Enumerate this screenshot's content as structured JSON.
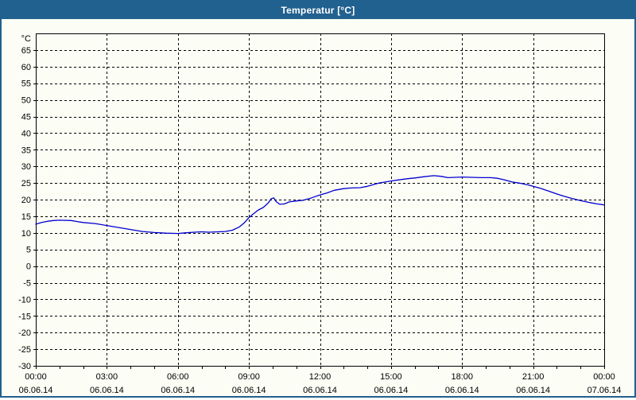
{
  "window": {
    "title": "Temperatur [°C]",
    "title_bar_color": "#21618F",
    "border_color": "#21618F",
    "background": "#FCFDF5"
  },
  "chart_data": {
    "type": "line",
    "title": "Temperatur [°C]",
    "xlabel": "",
    "ylabel": "°C",
    "y_unit_label": "°C",
    "ylim": [
      -30,
      70
    ],
    "y_tick_labels": [
      65,
      60,
      55,
      50,
      45,
      40,
      35,
      30,
      25,
      20,
      15,
      10,
      5,
      0,
      -5,
      -10,
      -15,
      -20,
      -25,
      -30
    ],
    "x_range_hours": [
      0,
      24
    ],
    "x_major_ticks": [
      {
        "hour": 0,
        "time": "00:00",
        "date": "06.06.14"
      },
      {
        "hour": 3,
        "time": "03:00",
        "date": "06.06.14"
      },
      {
        "hour": 6,
        "time": "06:00",
        "date": "06.06.14"
      },
      {
        "hour": 9,
        "time": "09:00",
        "date": "06.06.14"
      },
      {
        "hour": 12,
        "time": "12:00",
        "date": "06.06.14"
      },
      {
        "hour": 15,
        "time": "15:00",
        "date": "06.06.14"
      },
      {
        "hour": 18,
        "time": "18:00",
        "date": "06.06.14"
      },
      {
        "hour": 21,
        "time": "21:00",
        "date": "06.06.14"
      },
      {
        "hour": 24,
        "time": "00:00",
        "date": "07.06.14"
      }
    ],
    "x_minor_tick_step_hours": 1,
    "grid": "dashed",
    "legend": "none",
    "series": [
      {
        "name": "Temperatur",
        "color": "#0000D0",
        "points": [
          [
            0.0,
            12.6
          ],
          [
            0.25,
            13.1
          ],
          [
            0.5,
            13.5
          ],
          [
            0.75,
            13.7
          ],
          [
            1.0,
            13.8
          ],
          [
            1.5,
            13.7
          ],
          [
            1.75,
            13.4
          ],
          [
            2.0,
            13.1
          ],
          [
            2.5,
            12.8
          ],
          [
            3.0,
            12.2
          ],
          [
            3.5,
            11.6
          ],
          [
            4.0,
            11.0
          ],
          [
            4.5,
            10.4
          ],
          [
            5.0,
            10.1
          ],
          [
            5.5,
            9.9
          ],
          [
            6.0,
            9.8
          ],
          [
            6.3,
            10.0
          ],
          [
            6.7,
            10.2
          ],
          [
            7.0,
            10.3
          ],
          [
            7.3,
            10.2
          ],
          [
            7.7,
            10.3
          ],
          [
            8.0,
            10.4
          ],
          [
            8.3,
            10.8
          ],
          [
            8.6,
            11.8
          ],
          [
            8.8,
            13.0
          ],
          [
            9.0,
            14.6
          ],
          [
            9.2,
            15.8
          ],
          [
            9.4,
            16.9
          ],
          [
            9.6,
            17.6
          ],
          [
            9.8,
            18.9
          ],
          [
            9.95,
            20.3
          ],
          [
            10.05,
            20.5
          ],
          [
            10.15,
            19.4
          ],
          [
            10.3,
            18.6
          ],
          [
            10.5,
            18.7
          ],
          [
            10.7,
            19.3
          ],
          [
            11.0,
            19.6
          ],
          [
            11.3,
            19.8
          ],
          [
            11.6,
            20.4
          ],
          [
            11.8,
            20.9
          ],
          [
            12.0,
            21.4
          ],
          [
            12.3,
            22.0
          ],
          [
            12.6,
            22.8
          ],
          [
            13.0,
            23.3
          ],
          [
            13.3,
            23.5
          ],
          [
            13.7,
            23.6
          ],
          [
            14.0,
            24.0
          ],
          [
            14.5,
            25.0
          ],
          [
            15.0,
            25.6
          ],
          [
            15.3,
            25.9
          ],
          [
            15.7,
            26.3
          ],
          [
            16.0,
            26.5
          ],
          [
            16.4,
            26.9
          ],
          [
            16.8,
            27.2
          ],
          [
            17.1,
            27.0
          ],
          [
            17.4,
            26.6
          ],
          [
            17.7,
            26.7
          ],
          [
            18.0,
            26.8
          ],
          [
            18.4,
            26.7
          ],
          [
            18.8,
            26.6
          ],
          [
            19.2,
            26.6
          ],
          [
            19.5,
            26.4
          ],
          [
            19.8,
            25.9
          ],
          [
            20.1,
            25.3
          ],
          [
            20.4,
            25.0
          ],
          [
            20.8,
            24.4
          ],
          [
            21.0,
            24.0
          ],
          [
            21.3,
            23.4
          ],
          [
            21.6,
            22.7
          ],
          [
            22.0,
            21.7
          ],
          [
            22.3,
            21.0
          ],
          [
            22.6,
            20.4
          ],
          [
            23.0,
            19.7
          ],
          [
            23.4,
            19.1
          ],
          [
            23.7,
            18.7
          ],
          [
            24.0,
            18.4
          ]
        ]
      }
    ]
  }
}
